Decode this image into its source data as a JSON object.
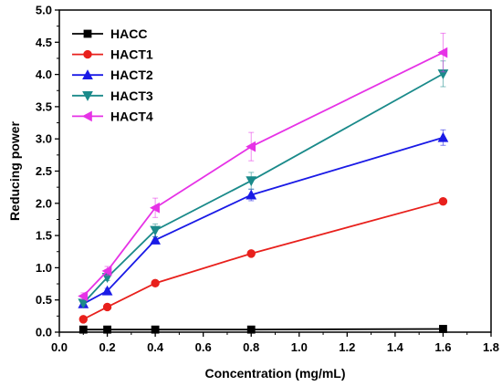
{
  "chart_data": {
    "type": "line",
    "xlabel": "Concentration (mg/mL)",
    "ylabel": "Reducing power",
    "xlim": [
      0.0,
      1.8
    ],
    "ylim": [
      0.0,
      5.0
    ],
    "x_ticks": [
      "0.0",
      "0.2",
      "0.4",
      "0.6",
      "0.8",
      "1.0",
      "1.2",
      "1.4",
      "1.6",
      "1.8"
    ],
    "y_ticks": [
      "0.0",
      "0.5",
      "1.0",
      "1.5",
      "2.0",
      "2.5",
      "3.0",
      "3.5",
      "4.0",
      "4.5",
      "5.0"
    ],
    "x": [
      0.1,
      0.2,
      0.4,
      0.8,
      1.6
    ],
    "legend_position": "top-left",
    "grid": false,
    "series": [
      {
        "name": "HACC",
        "color": "#000000",
        "marker": "square",
        "values": [
          0.04,
          0.04,
          0.04,
          0.04,
          0.05
        ],
        "errors": [
          0.01,
          0.01,
          0.01,
          0.01,
          0.01
        ]
      },
      {
        "name": "HACT1",
        "color": "#e8201c",
        "marker": "circle",
        "values": [
          0.2,
          0.39,
          0.76,
          1.22,
          2.03
        ],
        "errors": [
          0.02,
          0.03,
          0.04,
          0.03,
          0.03
        ]
      },
      {
        "name": "HACT2",
        "color": "#1a1ae6",
        "marker": "triangle-up",
        "values": [
          0.44,
          0.64,
          1.43,
          2.13,
          3.02
        ],
        "errors": [
          0.03,
          0.04,
          0.05,
          0.09,
          0.12
        ]
      },
      {
        "name": "HACT3",
        "color": "#1a8a8a",
        "marker": "triangle-down",
        "values": [
          0.45,
          0.85,
          1.58,
          2.35,
          4.01
        ],
        "errors": [
          0.04,
          0.05,
          0.1,
          0.13,
          0.2
        ]
      },
      {
        "name": "HACT4",
        "color": "#e632e6",
        "marker": "triangle-left",
        "values": [
          0.56,
          0.95,
          1.93,
          2.88,
          4.34
        ],
        "errors": [
          0.05,
          0.07,
          0.15,
          0.22,
          0.3
        ]
      }
    ]
  }
}
